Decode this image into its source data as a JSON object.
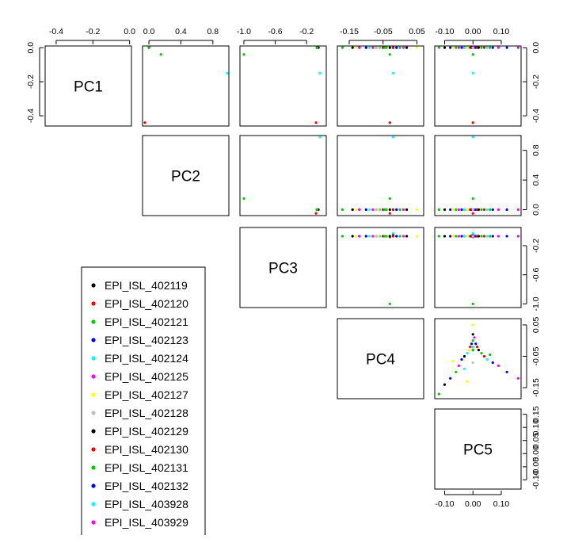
{
  "chart_data": {
    "type": "scatter",
    "subtype": "pairs-matrix",
    "variables": [
      "PC1",
      "PC2",
      "PC3",
      "PC4",
      "PC5"
    ],
    "ranges": {
      "PC1": [
        -0.46,
        0.01
      ],
      "PC2": [
        -0.08,
        1.0
      ],
      "PC3": [
        -1.05,
        0.05
      ],
      "PC4": [
        -0.185,
        0.07
      ],
      "PC5": [
        -0.135,
        0.17
      ]
    },
    "ticks": {
      "PC1": {
        "values": [
          -0.4,
          -0.2,
          0.0
        ],
        "labels": [
          "-0.4",
          "-0.2",
          "0.0"
        ]
      },
      "PC2": {
        "values": [
          0.0,
          0.4,
          0.8
        ],
        "labels": [
          "0.0",
          "0.4",
          "0.8"
        ]
      },
      "PC3": {
        "values": [
          -1.0,
          -0.6,
          -0.2
        ],
        "labels": [
          "-1.0",
          "-0.6",
          "-0.2"
        ]
      },
      "PC4": {
        "values": [
          -0.15,
          -0.05,
          0.05
        ],
        "labels": [
          "-0.15",
          "-0.05",
          "0.05"
        ]
      },
      "PC5": {
        "values": [
          -0.1,
          0.0,
          0.1
        ],
        "labels": [
          "-0.10",
          "0.00",
          "0.10"
        ]
      },
      "PC5_right": {
        "values": [
          -0.1,
          -0.05,
          0.0,
          0.05,
          0.1,
          0.15
        ],
        "labels": [
          "-0.10",
          "-0.05",
          "0.00",
          "0.05",
          "0.10",
          "0.15"
        ]
      }
    },
    "grid": false,
    "legend_position": "bottom-left",
    "legend": [
      {
        "label": "EPI_ISL_402119",
        "color": "#000000"
      },
      {
        "label": "EPI_ISL_402120",
        "color": "#ff0000"
      },
      {
        "label": "EPI_ISL_402121",
        "color": "#00cd00"
      },
      {
        "label": "EPI_ISL_402123",
        "color": "#0000ff"
      },
      {
        "label": "EPI_ISL_402124",
        "color": "#00ffff"
      },
      {
        "label": "EPI_ISL_402125",
        "color": "#ff00ff"
      },
      {
        "label": "EPI_ISL_402127",
        "color": "#ffff00"
      },
      {
        "label": "EPI_ISL_402128",
        "color": "#bebebe"
      },
      {
        "label": "EPI_ISL_402129",
        "color": "#000000"
      },
      {
        "label": "EPI_ISL_402130",
        "color": "#ff0000"
      },
      {
        "label": "EPI_ISL_402131",
        "color": "#00cd00"
      },
      {
        "label": "EPI_ISL_402132",
        "color": "#0000ff"
      },
      {
        "label": "EPI_ISL_403928",
        "color": "#00ffff"
      },
      {
        "label": "EPI_ISL_403929",
        "color": "#ff00ff"
      }
    ],
    "points": [
      {
        "PC1": 0.0,
        "PC2": 0.0,
        "PC3": -0.05,
        "PC4": -0.02,
        "PC5": 0.0,
        "color": "#000000"
      },
      {
        "PC1": -0.44,
        "PC2": -0.05,
        "PC3": -0.08,
        "PC4": -0.03,
        "PC5": 0.0,
        "color": "#ff0000"
      },
      {
        "PC1": -0.04,
        "PC2": 0.15,
        "PC3": -1.0,
        "PC4": -0.03,
        "PC5": 0.0,
        "color": "#00cd00"
      },
      {
        "PC1": -0.15,
        "PC2": 0.98,
        "PC3": -0.03,
        "PC4": -0.02,
        "PC5": 0.0,
        "color": "#00ffff"
      },
      {
        "PC1": 0.0,
        "PC2": 0.0,
        "PC3": -0.07,
        "PC4": -0.17,
        "PC5": -0.12,
        "color": "#00cd00"
      },
      {
        "PC1": 0.0,
        "PC2": 0.0,
        "PC3": -0.07,
        "PC4": -0.14,
        "PC5": -0.1,
        "color": "#000000"
      },
      {
        "PC1": 0.0,
        "PC2": 0.0,
        "PC3": -0.07,
        "PC4": -0.12,
        "PC5": -0.08,
        "color": "#0000ff"
      },
      {
        "PC1": 0.0,
        "PC2": 0.0,
        "PC3": -0.07,
        "PC4": -0.1,
        "PC5": -0.06,
        "color": "#00cd00"
      },
      {
        "PC1": 0.0,
        "PC2": 0.0,
        "PC3": -0.07,
        "PC4": -0.08,
        "PC5": -0.05,
        "color": "#ff00ff"
      },
      {
        "PC1": 0.0,
        "PC2": 0.0,
        "PC3": -0.07,
        "PC4": -0.06,
        "PC5": -0.04,
        "color": "#0000ff"
      },
      {
        "PC1": 0.0,
        "PC2": 0.0,
        "PC3": -0.07,
        "PC4": -0.05,
        "PC5": -0.03,
        "color": "#000000"
      },
      {
        "PC1": 0.0,
        "PC2": 0.0,
        "PC3": -0.07,
        "PC4": -0.04,
        "PC5": -0.02,
        "color": "#00ffff"
      },
      {
        "PC1": 0.0,
        "PC2": 0.0,
        "PC3": -0.07,
        "PC4": -0.03,
        "PC5": -0.015,
        "color": "#ffff00"
      },
      {
        "PC1": 0.0,
        "PC2": 0.0,
        "PC3": -0.07,
        "PC4": -0.02,
        "PC5": -0.01,
        "color": "#ff0000"
      },
      {
        "PC1": 0.0,
        "PC2": 0.0,
        "PC3": -0.07,
        "PC4": -0.01,
        "PC5": -0.005,
        "color": "#0000ff"
      },
      {
        "PC1": 0.0,
        "PC2": 0.0,
        "PC3": -0.07,
        "PC4": 0.0,
        "PC5": 0.0,
        "color": "#00cd00"
      },
      {
        "PC1": 0.0,
        "PC2": 0.0,
        "PC3": -0.07,
        "PC4": 0.01,
        "PC5": 0.005,
        "color": "#ff00ff"
      },
      {
        "PC1": 0.0,
        "PC2": 0.0,
        "PC3": -0.07,
        "PC4": 0.02,
        "PC5": 0.0,
        "color": "#000000"
      },
      {
        "PC1": 0.0,
        "PC2": 0.0,
        "PC3": -0.07,
        "PC4": 0.05,
        "PC5": 0.0,
        "color": "#ffff00"
      },
      {
        "PC1": 0.0,
        "PC2": 0.0,
        "PC3": -0.07,
        "PC4": -0.01,
        "PC5": 0.01,
        "color": "#0000ff"
      },
      {
        "PC1": 0.0,
        "PC2": 0.0,
        "PC3": -0.07,
        "PC4": -0.02,
        "PC5": 0.015,
        "color": "#ff0000"
      },
      {
        "PC1": 0.0,
        "PC2": 0.0,
        "PC3": -0.07,
        "PC4": -0.03,
        "PC5": 0.02,
        "color": "#000000"
      },
      {
        "PC1": 0.0,
        "PC2": 0.0,
        "PC3": -0.07,
        "PC4": -0.04,
        "PC5": 0.03,
        "color": "#00cd00"
      },
      {
        "PC1": 0.0,
        "PC2": 0.0,
        "PC3": -0.07,
        "PC4": -0.05,
        "PC5": 0.04,
        "color": "#ff0000"
      },
      {
        "PC1": 0.0,
        "PC2": 0.0,
        "PC3": -0.07,
        "PC4": -0.06,
        "PC5": 0.05,
        "color": "#00ffff"
      },
      {
        "PC1": 0.0,
        "PC2": 0.0,
        "PC3": -0.07,
        "PC4": -0.07,
        "PC5": 0.07,
        "color": "#0000ff"
      },
      {
        "PC1": 0.0,
        "PC2": 0.0,
        "PC3": -0.07,
        "PC4": -0.08,
        "PC5": 0.09,
        "color": "#ff00ff"
      },
      {
        "PC1": 0.0,
        "PC2": 0.0,
        "PC3": -0.07,
        "PC4": -0.1,
        "PC5": 0.12,
        "color": "#0000ff"
      },
      {
        "PC1": 0.0,
        "PC2": 0.0,
        "PC3": -0.07,
        "PC4": -0.12,
        "PC5": 0.16,
        "color": "#ff00ff"
      },
      {
        "PC1": 0.0,
        "PC2": 0.0,
        "PC3": -0.07,
        "PC4": -0.065,
        "PC5": -0.07,
        "color": "#ffff00"
      },
      {
        "PC1": 0.0,
        "PC2": 0.0,
        "PC3": -0.07,
        "PC4": -0.09,
        "PC5": -0.03,
        "color": "#00ffff"
      },
      {
        "PC1": 0.0,
        "PC2": 0.0,
        "PC3": -0.07,
        "PC4": -0.13,
        "PC5": -0.02,
        "color": "#ffff00"
      },
      {
        "PC1": 0.0,
        "PC2": 0.0,
        "PC3": -0.07,
        "PC4": -0.07,
        "PC5": 0.0,
        "color": "#bebebe"
      },
      {
        "PC1": 0.0,
        "PC2": 0.0,
        "PC3": -0.07,
        "PC4": -0.045,
        "PC5": 0.06,
        "color": "#00cd00"
      }
    ]
  }
}
